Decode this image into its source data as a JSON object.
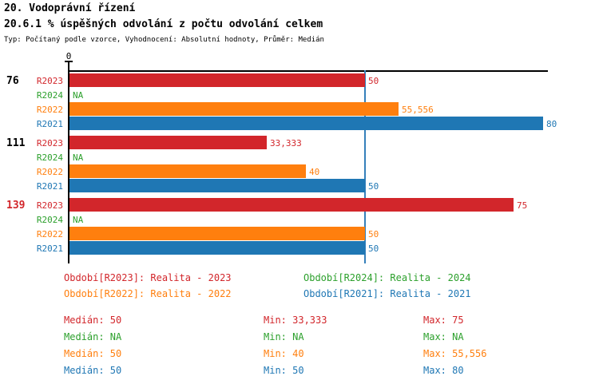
{
  "header": {
    "title": "20. Vodoprávní řízení",
    "subtitle": "20.6.1 % úspěšných odvolání z počtu odvolání celkem",
    "meta": "Typ: Počítaný podle vzorce, Vyhodnocení: Absolutní hodnoty, Průměr: Medián"
  },
  "colors": {
    "r2023": "#d2262b",
    "r2024": "#2ca02c",
    "r2022": "#ff7f0e",
    "r2021": "#1f77b4",
    "axis": "#000000",
    "median_line": "#3580bb",
    "group_highlight": "#d2262b"
  },
  "chart_data": {
    "type": "bar",
    "orientation": "horizontal",
    "axis": {
      "origin_label": "0",
      "xlim": [
        0,
        81
      ],
      "median_line_value": 50,
      "grid": false
    },
    "series": [
      {
        "id": "R2023",
        "label": "R2023",
        "color": "#d2262b"
      },
      {
        "id": "R2024",
        "label": "R2024",
        "color": "#2ca02c"
      },
      {
        "id": "R2022",
        "label": "R2022",
        "color": "#ff7f0e"
      },
      {
        "id": "R2021",
        "label": "R2021",
        "color": "#1f77b4"
      }
    ],
    "groups": [
      {
        "label": "76",
        "label_color": "#000000",
        "values": [
          50,
          null,
          55.556,
          80
        ],
        "displays": [
          "50",
          "NA",
          "55,556",
          "80"
        ]
      },
      {
        "label": "111",
        "label_color": "#000000",
        "values": [
          33.333,
          null,
          40,
          50
        ],
        "displays": [
          "33,333",
          "NA",
          "40",
          "50"
        ]
      },
      {
        "label": "139",
        "label_color": "#d2262b",
        "values": [
          75,
          null,
          50,
          50
        ],
        "displays": [
          "75",
          "NA",
          "50",
          "50"
        ]
      }
    ]
  },
  "legend": {
    "items": [
      {
        "label": "Období[R2023]:",
        "value": "Realita - 2023",
        "color": "#d2262b"
      },
      {
        "label": "Období[R2024]:",
        "value": "Realita - 2024",
        "color": "#2ca02c"
      },
      {
        "label": "Období[R2022]:",
        "value": "Realita - 2022",
        "color": "#ff7f0e"
      },
      {
        "label": "Období[R2021]:",
        "value": "Realita - 2021",
        "color": "#1f77b4"
      }
    ]
  },
  "stats": {
    "rows": [
      {
        "color": "#d2262b",
        "median": "Medián: 50",
        "min": "Min: 33,333",
        "max": "Max: 75"
      },
      {
        "color": "#2ca02c",
        "median": "Medián: NA",
        "min": "Min: NA",
        "max": "Max: NA"
      },
      {
        "color": "#ff7f0e",
        "median": "Medián: 50",
        "min": "Min: 40",
        "max": "Max: 55,556"
      },
      {
        "color": "#1f77b4",
        "median": "Medián: 50",
        "min": "Min: 50",
        "max": "Max: 80"
      }
    ]
  }
}
